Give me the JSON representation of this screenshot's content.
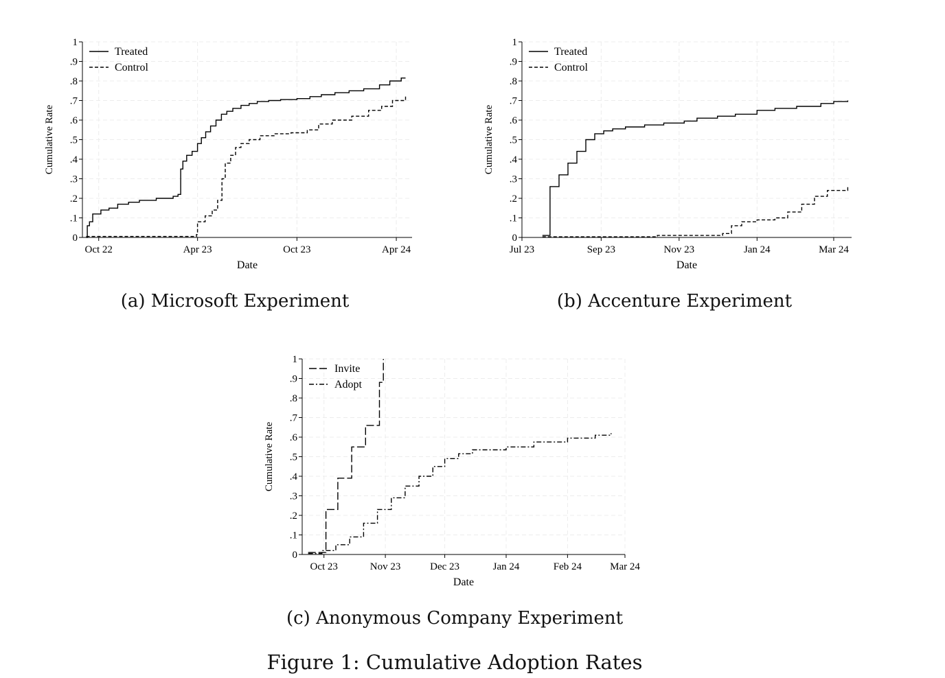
{
  "figure_caption": "Figure 1: Cumulative Adoption Rates",
  "panels": [
    {
      "caption": "(a) Microsoft Experiment"
    },
    {
      "caption": "(b) Accenture Experiment"
    },
    {
      "caption": "(c) Anonymous Company Experiment"
    }
  ],
  "chart_data": [
    {
      "type": "line",
      "title": "(a) Microsoft Experiment",
      "xlabel": "Date",
      "ylabel": "Cumulative Rate",
      "x_ticks": [
        "Oct 22",
        "Apr 23",
        "Oct 23",
        "Apr 24"
      ],
      "x_tick_dates": [
        "2022-10-01",
        "2023-04-01",
        "2023-10-01",
        "2024-04-01"
      ],
      "xlim": [
        "2022-09-01",
        "2024-04-30"
      ],
      "y_ticks": [
        "0",
        ".1",
        ".2",
        ".3",
        ".4",
        ".5",
        ".6",
        ".7",
        ".8",
        ".9",
        "1"
      ],
      "ylim": [
        0,
        1
      ],
      "grid": true,
      "legend_position": "top-left",
      "series": [
        {
          "name": "Treated",
          "style": "solid",
          "color": "#000000",
          "x": [
            "2022-09-08",
            "2022-09-10",
            "2022-09-14",
            "2022-09-20",
            "2022-10-05",
            "2022-10-20",
            "2022-11-05",
            "2022-11-25",
            "2022-12-15",
            "2023-01-15",
            "2023-02-15",
            "2023-02-24",
            "2023-03-01",
            "2023-03-05",
            "2023-03-12",
            "2023-03-22",
            "2023-04-01",
            "2023-04-08",
            "2023-04-16",
            "2023-04-25",
            "2023-05-05",
            "2023-05-15",
            "2023-05-25",
            "2023-06-05",
            "2023-06-20",
            "2023-07-05",
            "2023-07-20",
            "2023-08-10",
            "2023-09-01",
            "2023-10-01",
            "2023-10-25",
            "2023-11-15",
            "2023-12-10",
            "2024-01-05",
            "2024-02-01",
            "2024-03-01",
            "2024-03-20",
            "2024-04-10",
            "2024-04-18"
          ],
          "y": [
            0.0,
            0.06,
            0.08,
            0.12,
            0.14,
            0.15,
            0.17,
            0.18,
            0.19,
            0.2,
            0.21,
            0.22,
            0.35,
            0.39,
            0.42,
            0.44,
            0.48,
            0.51,
            0.54,
            0.57,
            0.6,
            0.63,
            0.645,
            0.66,
            0.675,
            0.685,
            0.695,
            0.7,
            0.705,
            0.71,
            0.72,
            0.73,
            0.74,
            0.75,
            0.76,
            0.78,
            0.8,
            0.815,
            0.815
          ]
        },
        {
          "name": "Control",
          "style": "dashed",
          "color": "#000000",
          "x": [
            "2022-09-08",
            "2023-03-30",
            "2023-04-01",
            "2023-04-15",
            "2023-04-28",
            "2023-05-08",
            "2023-05-16",
            "2023-05-22",
            "2023-06-01",
            "2023-06-10",
            "2023-06-20",
            "2023-07-05",
            "2023-07-25",
            "2023-08-20",
            "2023-09-20",
            "2023-10-20",
            "2023-11-10",
            "2023-12-05",
            "2024-01-10",
            "2024-02-10",
            "2024-03-05",
            "2024-03-25",
            "2024-04-18"
          ],
          "y": [
            0.005,
            0.015,
            0.08,
            0.11,
            0.14,
            0.19,
            0.3,
            0.38,
            0.42,
            0.46,
            0.48,
            0.5,
            0.52,
            0.53,
            0.535,
            0.55,
            0.58,
            0.6,
            0.62,
            0.65,
            0.67,
            0.7,
            0.72
          ]
        }
      ]
    },
    {
      "type": "line",
      "title": "(b) Accenture Experiment",
      "xlabel": "Date",
      "ylabel": "Cumulative Rate",
      "x_ticks": [
        "Jul 23",
        "Sep 23",
        "Nov 23",
        "Jan 24",
        "Mar 24"
      ],
      "x_tick_dates": [
        "2023-07-01",
        "2023-09-01",
        "2023-11-01",
        "2024-01-01",
        "2024-03-01"
      ],
      "xlim": [
        "2023-07-01",
        "2024-03-15"
      ],
      "y_ticks": [
        "0",
        ".1",
        ".2",
        ".3",
        ".4",
        ".5",
        ".6",
        ".7",
        ".8",
        ".9",
        "1"
      ],
      "ylim": [
        0,
        1
      ],
      "grid": true,
      "legend_position": "top-left",
      "series": [
        {
          "name": "Treated",
          "style": "solid",
          "color": "#000000",
          "x": [
            "2023-07-17",
            "2023-07-23",
            "2023-07-30",
            "2023-08-06",
            "2023-08-13",
            "2023-08-20",
            "2023-08-27",
            "2023-09-03",
            "2023-09-10",
            "2023-09-20",
            "2023-10-05",
            "2023-10-20",
            "2023-11-05",
            "2023-11-15",
            "2023-12-01",
            "2023-12-15",
            "2024-01-01",
            "2024-01-15",
            "2024-02-01",
            "2024-02-20",
            "2024-03-01",
            "2024-03-12"
          ],
          "y": [
            0.01,
            0.26,
            0.32,
            0.38,
            0.44,
            0.5,
            0.53,
            0.545,
            0.555,
            0.565,
            0.575,
            0.585,
            0.595,
            0.61,
            0.62,
            0.63,
            0.65,
            0.66,
            0.67,
            0.685,
            0.695,
            0.7
          ]
        },
        {
          "name": "Control",
          "style": "dashed",
          "color": "#000000",
          "x": [
            "2023-07-17",
            "2023-10-01",
            "2023-10-15",
            "2023-12-05",
            "2023-12-12",
            "2023-12-20",
            "2024-01-01",
            "2024-01-15",
            "2024-01-25",
            "2024-02-05",
            "2024-02-15",
            "2024-02-25",
            "2024-03-12"
          ],
          "y": [
            0.003,
            0.003,
            0.01,
            0.02,
            0.06,
            0.08,
            0.09,
            0.1,
            0.13,
            0.17,
            0.21,
            0.24,
            0.26
          ]
        }
      ]
    },
    {
      "type": "line",
      "title": "(c) Anonymous Company Experiment",
      "xlabel": "Date",
      "ylabel": "Cumulative Rate",
      "x_ticks": [
        "Oct 23",
        "Nov 23",
        "Dec 23",
        "Jan 24",
        "Feb 24",
        "Mar 24"
      ],
      "x_tick_dates": [
        "2023-10-01",
        "2023-11-01",
        "2023-12-01",
        "2024-01-01",
        "2024-02-01",
        "2024-03-01"
      ],
      "xlim": [
        "2023-09-20",
        "2024-03-01"
      ],
      "y_ticks": [
        "0",
        ".1",
        ".2",
        ".3",
        ".4",
        ".5",
        ".6",
        ".7",
        ".8",
        ".9",
        "1"
      ],
      "ylim": [
        0,
        1
      ],
      "grid": true,
      "legend_position": "top-left",
      "series": [
        {
          "name": "Invite",
          "style": "longdash",
          "color": "#000000",
          "x": [
            "2023-09-23",
            "2023-09-30",
            "2023-10-02",
            "2023-10-08",
            "2023-10-15",
            "2023-10-22",
            "2023-10-29",
            "2023-10-31"
          ],
          "y": [
            0.01,
            0.01,
            0.23,
            0.39,
            0.55,
            0.66,
            0.88,
            1.0
          ]
        },
        {
          "name": "Adopt",
          "style": "dashdot",
          "color": "#000000",
          "x": [
            "2023-09-23",
            "2023-09-30",
            "2023-10-07",
            "2023-10-14",
            "2023-10-21",
            "2023-10-28",
            "2023-11-04",
            "2023-11-11",
            "2023-11-18",
            "2023-11-25",
            "2023-12-01",
            "2023-12-08",
            "2023-12-15",
            "2024-01-01",
            "2024-01-15",
            "2024-02-01",
            "2024-02-15",
            "2024-02-23"
          ],
          "y": [
            0.005,
            0.02,
            0.05,
            0.09,
            0.16,
            0.23,
            0.29,
            0.35,
            0.4,
            0.45,
            0.49,
            0.515,
            0.535,
            0.55,
            0.575,
            0.595,
            0.61,
            0.62
          ]
        }
      ]
    }
  ]
}
